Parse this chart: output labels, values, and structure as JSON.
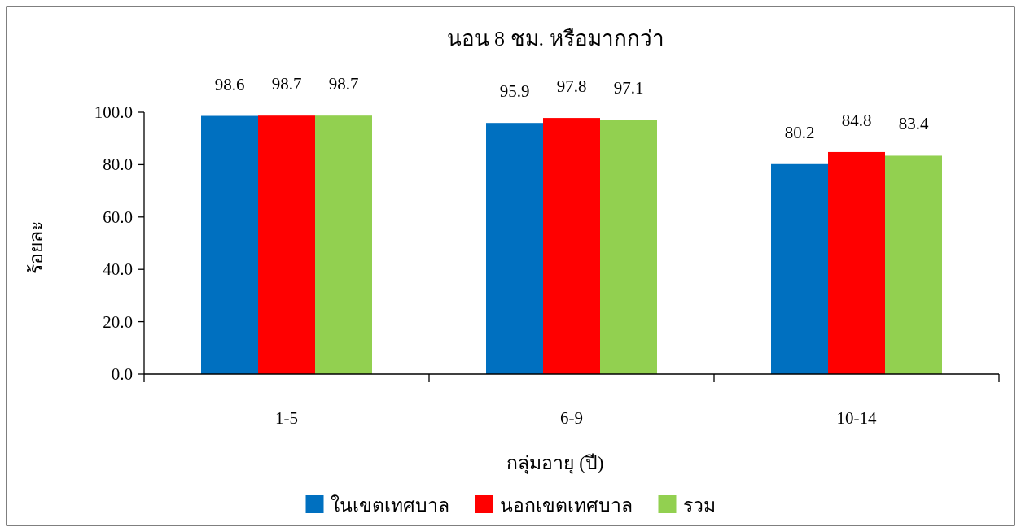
{
  "chart_data": {
    "type": "bar",
    "title": "นอน 8 ชม. หรือมากกว่า",
    "xlabel": "กลุ่มอายุ (ปี)",
    "ylabel": "ร้อยละ",
    "categories": [
      "1-5",
      "6-9",
      "10-14"
    ],
    "series": [
      {
        "name": "ในเขตเทศบาล",
        "color": "#0070c0",
        "values": [
          98.6,
          95.9,
          80.2
        ]
      },
      {
        "name": "นอกเขตเทศบาล",
        "color": "#ff0000",
        "values": [
          98.7,
          97.8,
          84.8
        ]
      },
      {
        "name": "รวม",
        "color": "#92d050",
        "values": [
          98.7,
          97.1,
          83.4
        ]
      }
    ],
    "ylim": [
      0,
      100
    ],
    "yticks": [
      {
        "value": 0,
        "label": "0.0"
      },
      {
        "value": 20,
        "label": "20.0"
      },
      {
        "value": 40,
        "label": "40.0"
      },
      {
        "value": 60,
        "label": "60.0"
      },
      {
        "value": 80,
        "label": "80.0"
      },
      {
        "value": 100,
        "label": "100.0"
      }
    ],
    "data_labels": true,
    "legend": "bottom"
  }
}
